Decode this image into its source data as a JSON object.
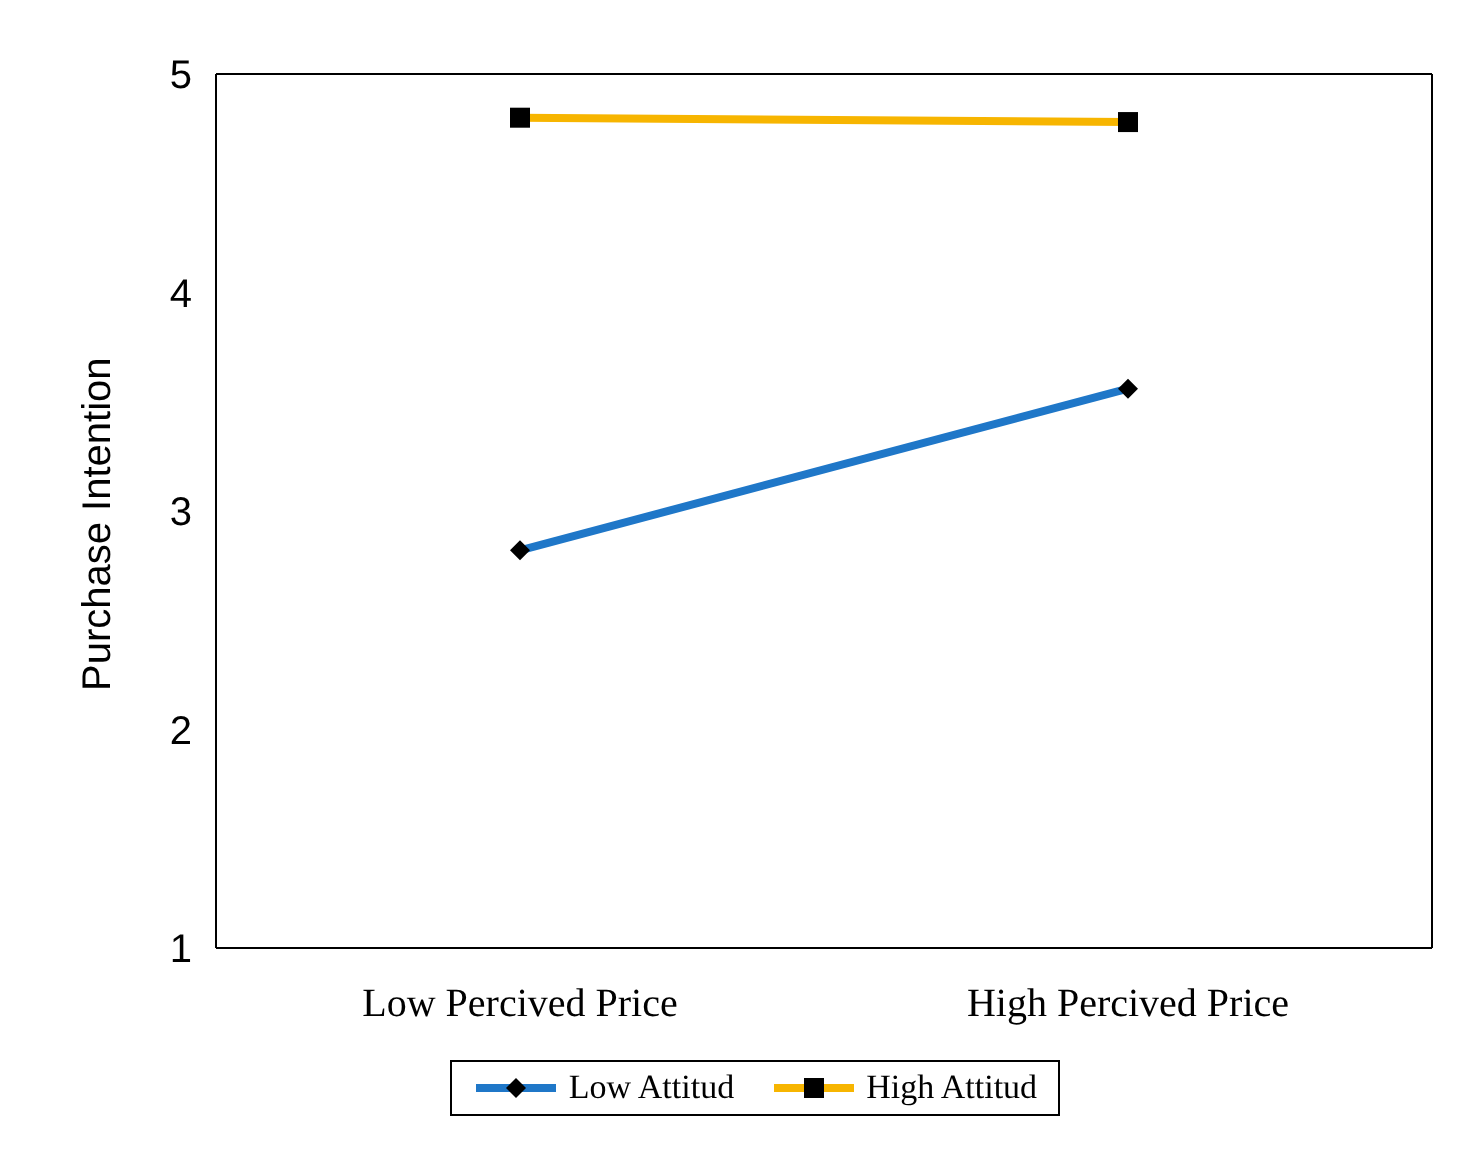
{
  "chart_data": {
    "type": "line",
    "ylabel": "Purchase Intention",
    "categories": [
      "Low Percived Price",
      "High Percived Price"
    ],
    "series": [
      {
        "name": "Low Attitud",
        "color": "#1f77c8",
        "values": [
          2.82,
          3.56
        ],
        "marker": "diamond"
      },
      {
        "name": "High Attitud",
        "color": "#f7b500",
        "values": [
          4.8,
          4.78
        ],
        "marker": "square"
      }
    ],
    "ylim": [
      1,
      5
    ],
    "yticks": [
      1,
      2,
      3,
      4,
      5
    ],
    "legend": "bottom"
  }
}
